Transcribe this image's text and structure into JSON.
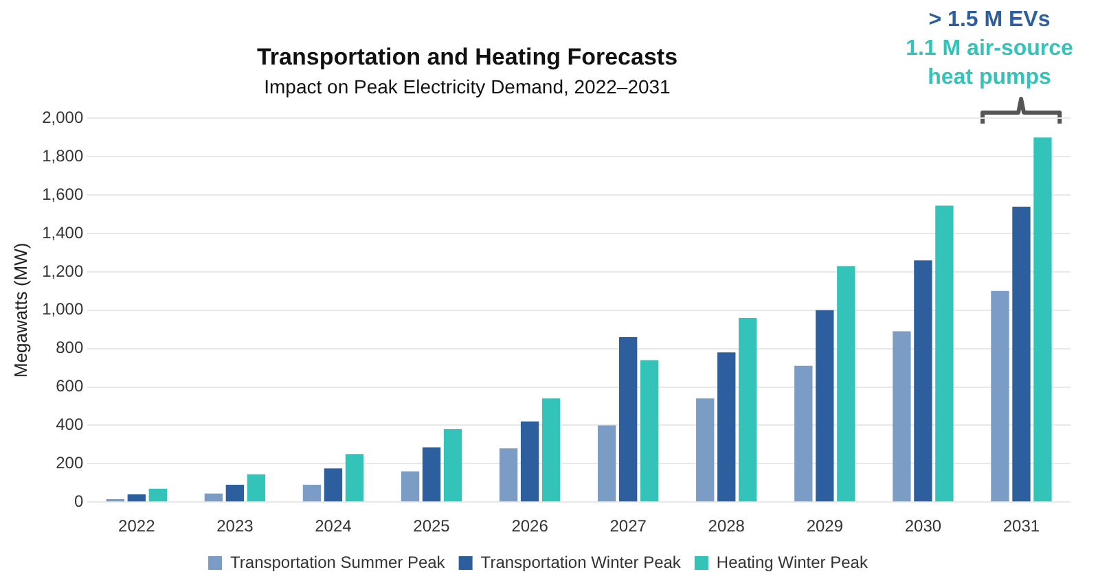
{
  "chart_data": {
    "type": "bar",
    "title": "Transportation and Heating Forecasts",
    "subtitle": "Impact on Peak Electricity Demand, 2022–2031",
    "ylabel": "Megawatts (MW)",
    "categories": [
      "2022",
      "2023",
      "2024",
      "2025",
      "2026",
      "2027",
      "2028",
      "2029",
      "2030",
      "2031"
    ],
    "series": [
      {
        "name": "Transportation Summer Peak",
        "color": "#7b9cc4",
        "values": [
          15,
          45,
          90,
          160,
          280,
          400,
          540,
          710,
          890,
          1100
        ]
      },
      {
        "name": "Transportation Winter Peak",
        "color": "#2d5f9e",
        "values": [
          40,
          90,
          175,
          285,
          420,
          860,
          780,
          1000,
          1260,
          1540
        ]
      },
      {
        "name": "Heating Winter Peak",
        "color": "#33c3b8",
        "values": [
          70,
          145,
          250,
          380,
          540,
          740,
          960,
          1230,
          1545,
          1900
        ]
      }
    ],
    "ylim": [
      0,
      2000
    ],
    "yticks": [
      {
        "value": 0,
        "label": "0"
      },
      {
        "value": 200,
        "label": "200"
      },
      {
        "value": 400,
        "label": "400"
      },
      {
        "value": 600,
        "label": "600"
      },
      {
        "value": 800,
        "label": "800"
      },
      {
        "value": 1000,
        "label": "1,000"
      },
      {
        "value": 1200,
        "label": "1,200"
      },
      {
        "value": 1400,
        "label": "1,400"
      },
      {
        "value": 1600,
        "label": "1,600"
      },
      {
        "value": 1800,
        "label": "1,800"
      },
      {
        "value": 2000,
        "label": "2,000"
      }
    ],
    "grid": "y",
    "legend": "bottom",
    "annotations": [
      "> 1.5 M EVs",
      "1.1 M air-source heat pumps"
    ]
  }
}
